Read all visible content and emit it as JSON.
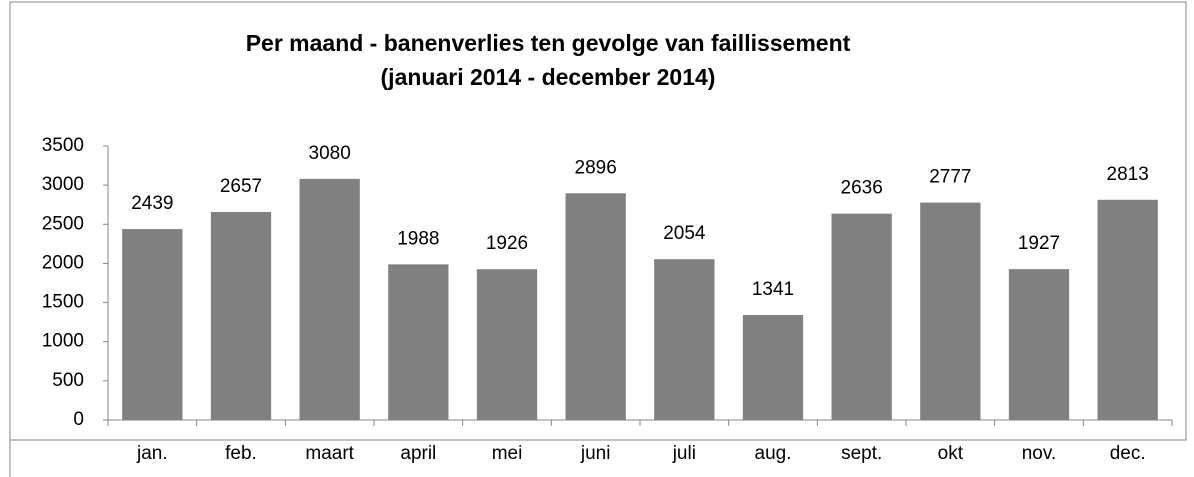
{
  "chart_data": {
    "type": "bar",
    "title": "Per maand - banenverlies ten gevolge van faillissement",
    "subtitle": "(januari 2014 - december 2014)",
    "categories": [
      "jan.",
      "feb.",
      "maart",
      "april",
      "mei",
      "juni",
      "juli",
      "aug.",
      "sept.",
      "okt",
      "nov.",
      "dec."
    ],
    "values": [
      2439,
      2657,
      3080,
      1988,
      1926,
      2896,
      2054,
      1341,
      2636,
      2777,
      1927,
      2813
    ],
    "color": "#808080",
    "ylim": [
      0,
      3500
    ],
    "yticks": [
      0,
      500,
      1000,
      1500,
      2000,
      2500,
      3000,
      3500
    ],
    "grid": false
  }
}
